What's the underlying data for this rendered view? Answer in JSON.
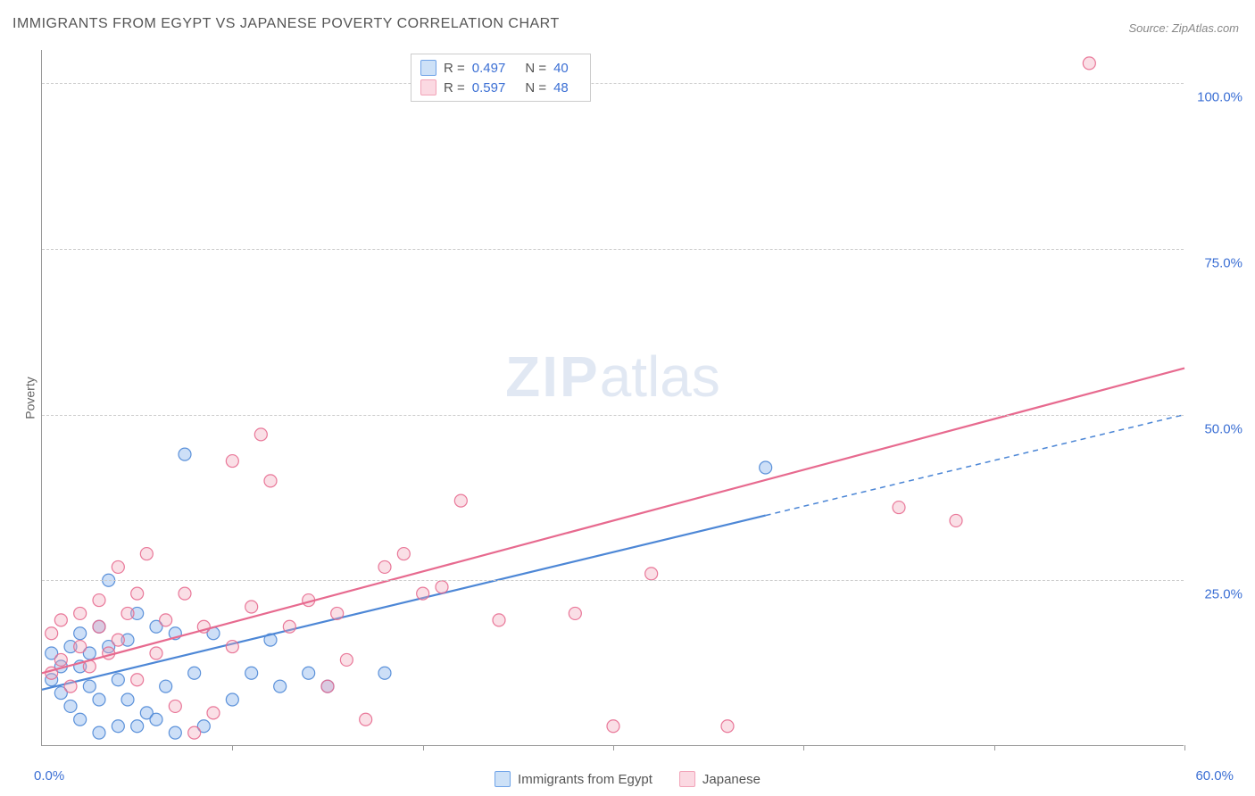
{
  "title": "IMMIGRANTS FROM EGYPT VS JAPANESE POVERTY CORRELATION CHART",
  "source": "Source: ZipAtlas.com",
  "y_axis_label": "Poverty",
  "watermark": {
    "bold": "ZIP",
    "light": "atlas"
  },
  "chart": {
    "type": "scatter",
    "xlim": [
      0,
      60
    ],
    "ylim": [
      0,
      105
    ],
    "x_tick_step": 10,
    "y_ticks": [
      25,
      50,
      75,
      100
    ],
    "y_tick_labels": [
      "25.0%",
      "50.0%",
      "75.0%",
      "100.0%"
    ],
    "x_min_label": "0.0%",
    "x_max_label": "60.0%",
    "background_color": "#ffffff",
    "grid_color": "#cccccc",
    "axis_color": "#999999",
    "tick_label_color": "#3b6fd4",
    "tick_label_fontsize": 15,
    "marker_radius": 7,
    "marker_fill_opacity": 0.35,
    "marker_stroke_opacity": 0.9,
    "marker_stroke_width": 1.2,
    "series": [
      {
        "name": "Immigrants from Egypt",
        "color": "#6fa3e8",
        "stroke": "#4d87d6",
        "R": "0.497",
        "N": "40",
        "trend": {
          "y_at_x0": 8.5,
          "y_at_x60": 50.0,
          "solid_until_x": 38,
          "stroke_width": 2.2
        },
        "points": [
          [
            0.5,
            14
          ],
          [
            0.5,
            10
          ],
          [
            1,
            12
          ],
          [
            1,
            8
          ],
          [
            1.5,
            15
          ],
          [
            1.5,
            6
          ],
          [
            2,
            17
          ],
          [
            2,
            12
          ],
          [
            2,
            4
          ],
          [
            2.5,
            14
          ],
          [
            2.5,
            9
          ],
          [
            3,
            18
          ],
          [
            3,
            7
          ],
          [
            3,
            2
          ],
          [
            3.5,
            15
          ],
          [
            3.5,
            25
          ],
          [
            4,
            10
          ],
          [
            4,
            3
          ],
          [
            4.5,
            16
          ],
          [
            4.5,
            7
          ],
          [
            5,
            20
          ],
          [
            5,
            3
          ],
          [
            5.5,
            5
          ],
          [
            6,
            18
          ],
          [
            6,
            4
          ],
          [
            6.5,
            9
          ],
          [
            7,
            2
          ],
          [
            7,
            17
          ],
          [
            7.5,
            44
          ],
          [
            8,
            11
          ],
          [
            8.5,
            3
          ],
          [
            9,
            17
          ],
          [
            10,
            7
          ],
          [
            11,
            11
          ],
          [
            12,
            16
          ],
          [
            12.5,
            9
          ],
          [
            14,
            11
          ],
          [
            15,
            9
          ],
          [
            18,
            11
          ],
          [
            38,
            42
          ]
        ]
      },
      {
        "name": "Japanese",
        "color": "#f2a3b8",
        "stroke": "#e76a8f",
        "R": "0.597",
        "N": "48",
        "trend": {
          "y_at_x0": 11,
          "y_at_x60": 57,
          "solid_until_x": 60,
          "stroke_width": 2.2
        },
        "points": [
          [
            0.5,
            11
          ],
          [
            0.5,
            17
          ],
          [
            1,
            13
          ],
          [
            1,
            19
          ],
          [
            1.5,
            9
          ],
          [
            2,
            15
          ],
          [
            2,
            20
          ],
          [
            2.5,
            12
          ],
          [
            3,
            18
          ],
          [
            3,
            22
          ],
          [
            3.5,
            14
          ],
          [
            4,
            16
          ],
          [
            4,
            27
          ],
          [
            4.5,
            20
          ],
          [
            5,
            10
          ],
          [
            5,
            23
          ],
          [
            5.5,
            29
          ],
          [
            6,
            14
          ],
          [
            6.5,
            19
          ],
          [
            7,
            6
          ],
          [
            7.5,
            23
          ],
          [
            8,
            2
          ],
          [
            8.5,
            18
          ],
          [
            9,
            5
          ],
          [
            10,
            15
          ],
          [
            10,
            43
          ],
          [
            11,
            21
          ],
          [
            11.5,
            47
          ],
          [
            12,
            40
          ],
          [
            13,
            18
          ],
          [
            14,
            22
          ],
          [
            15,
            9
          ],
          [
            15.5,
            20
          ],
          [
            16,
            13
          ],
          [
            17,
            4
          ],
          [
            18,
            27
          ],
          [
            19,
            29
          ],
          [
            20,
            23
          ],
          [
            21,
            24
          ],
          [
            22,
            37
          ],
          [
            24,
            19
          ],
          [
            28,
            20
          ],
          [
            30,
            3
          ],
          [
            36,
            3
          ],
          [
            45,
            36
          ],
          [
            48,
            34
          ],
          [
            55,
            103
          ],
          [
            32,
            26
          ]
        ]
      }
    ]
  },
  "legend_top": [
    {
      "swatch_fill": "#cde1f7",
      "swatch_stroke": "#6fa3e8",
      "R_label": "R =",
      "R_value": "0.497",
      "N_label": "N =",
      "N_value": "40"
    },
    {
      "swatch_fill": "#fbd9e2",
      "swatch_stroke": "#f2a3b8",
      "R_label": "R =",
      "R_value": "0.597",
      "N_label": "N =",
      "N_value": "48"
    }
  ],
  "legend_bottom": [
    {
      "swatch_fill": "#cde1f7",
      "swatch_stroke": "#6fa3e8",
      "label": "Immigrants from Egypt"
    },
    {
      "swatch_fill": "#fbd9e2",
      "swatch_stroke": "#f2a3b8",
      "label": "Japanese"
    }
  ]
}
